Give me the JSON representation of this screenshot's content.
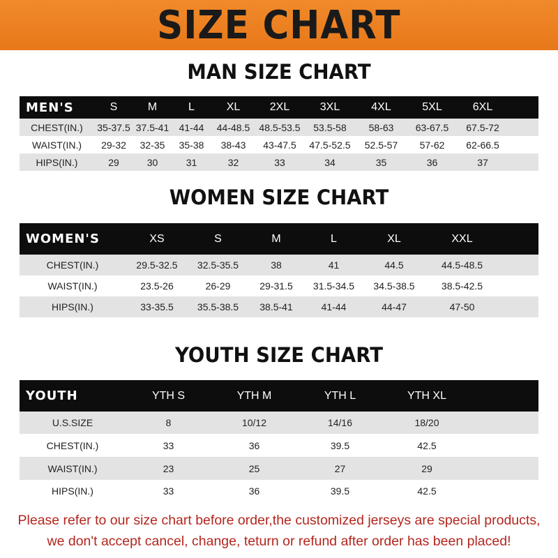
{
  "banner_title": "SIZE CHART",
  "men": {
    "title": "MAN SIZE CHART",
    "header": [
      "MEN'S",
      "S",
      "M",
      "L",
      "XL",
      "2XL",
      "3XL",
      "4XL",
      "5XL",
      "6XL"
    ],
    "rows": [
      [
        "CHEST(IN.)",
        "35-37.5",
        "37.5-41",
        "41-44",
        "44-48.5",
        "48.5-53.5",
        "53.5-58",
        "58-63",
        "63-67.5",
        "67.5-72"
      ],
      [
        "WAIST(IN.)",
        "29-32",
        "32-35",
        "35-38",
        "38-43",
        "43-47.5",
        "47.5-52.5",
        "52.5-57",
        "57-62",
        "62-66.5"
      ],
      [
        "HIPS(IN.)",
        "29",
        "30",
        "31",
        "32",
        "33",
        "34",
        "35",
        "36",
        "37"
      ]
    ]
  },
  "women": {
    "title": "WOMEN SIZE CHART",
    "header": [
      "WOMEN'S",
      "XS",
      "S",
      "M",
      "L",
      "XL",
      "XXL"
    ],
    "rows": [
      [
        "CHEST(IN.)",
        "29.5-32.5",
        "32.5-35.5",
        "38",
        "41",
        "44.5",
        "44.5-48.5"
      ],
      [
        "WAIST(IN.)",
        "23.5-26",
        "26-29",
        "29-31.5",
        "31.5-34.5",
        "34.5-38.5",
        "38.5-42.5"
      ],
      [
        "HIPS(IN.)",
        "33-35.5",
        "35.5-38.5",
        "38.5-41",
        "41-44",
        "44-47",
        "47-50"
      ]
    ]
  },
  "youth": {
    "title": "YOUTH SIZE CHART",
    "header": [
      "YOUTH",
      "YTH S",
      "YTH M",
      "YTH L",
      "YTH XL"
    ],
    "rows": [
      [
        "U.S.SIZE",
        "8",
        "10/12",
        "14/16",
        "18/20"
      ],
      [
        "CHEST(IN.)",
        "33",
        "36",
        "39.5",
        "42.5"
      ],
      [
        "WAIST(IN.)",
        "23",
        "25",
        "27",
        "29"
      ],
      [
        "HIPS(IN.)",
        "33",
        "36",
        "39.5",
        "42.5"
      ]
    ]
  },
  "note": [
    "Please refer to our size chart before order,the customized jerseys are special products,",
    "we don't accept cancel, change, teturn or refund after order has been placed!"
  ],
  "colors": {
    "banner": "#ee8324",
    "header_row": "#0d0d0d",
    "stripe": "#e3e3e3",
    "note": "#b3261e"
  }
}
